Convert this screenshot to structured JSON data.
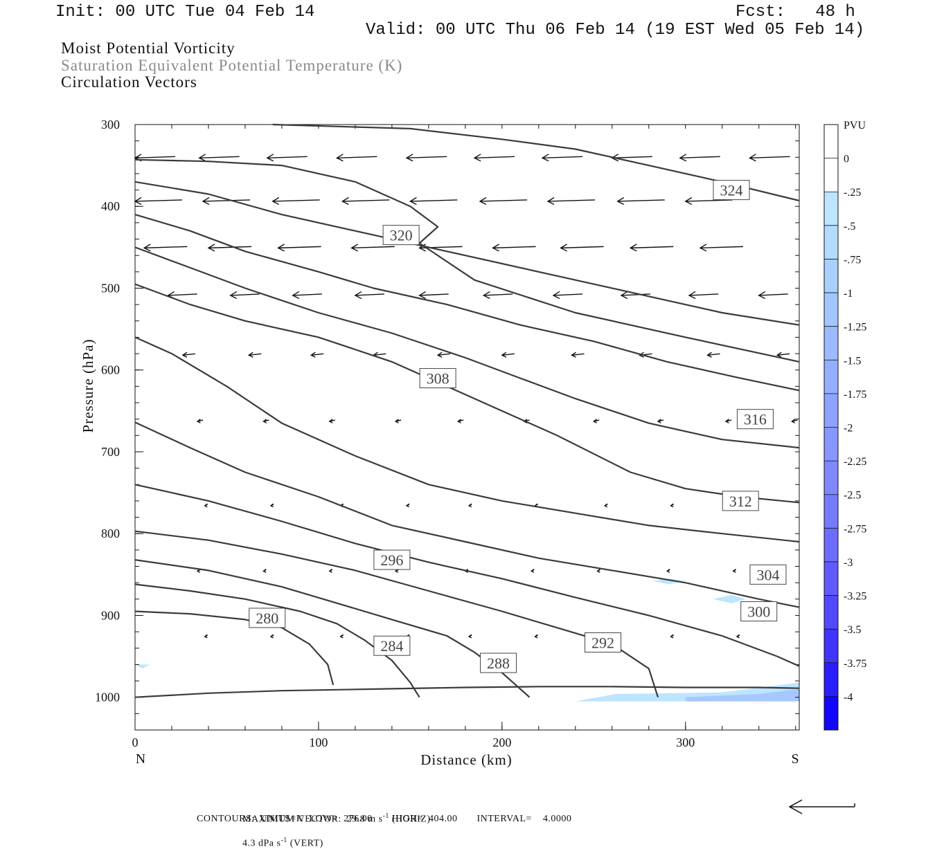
{
  "header": {
    "init": "Init: 00 UTC Tue 04 Feb 14",
    "fcst": "Fcst:   48 h",
    "valid": "Valid: 00 UTC Thu 06 Feb 14 (19 EST Wed 05 Feb 14)",
    "lines": [
      {
        "text": "Moist Potential Vorticity",
        "color": "#111111"
      },
      {
        "text": "Saturation Equivalent Potential Temperature (K)",
        "color": "#8a8a8a"
      },
      {
        "text": "Circulation Vectors",
        "color": "#111111"
      }
    ]
  },
  "chart_data": {
    "type": "cross-section",
    "xlabel": "Distance (km)",
    "ylabel": "Pressure (hPa)",
    "xlim": [
      0,
      362
    ],
    "ylim": [
      300,
      1040
    ],
    "x_ticks": [
      0,
      100,
      200,
      300
    ],
    "y_ticks": [
      300,
      400,
      500,
      600,
      700,
      800,
      900,
      1000
    ],
    "x_end_labels": {
      "left": "N",
      "right": "S"
    },
    "colorbar": {
      "title": "PVU",
      "labels": [
        "0",
        "-.25",
        "-.5",
        "-.75",
        "-1",
        "-1.25",
        "-1.5",
        "-1.75",
        "-2",
        "-2.25",
        "-2.5",
        "-2.75",
        "-3",
        "-3.25",
        "-3.5",
        "-3.75",
        "-4"
      ],
      "colors": [
        "#ffffff",
        "#ffffff",
        "#bde5ff",
        "#b2dcff",
        "#a8d0ff",
        "#a2c6ff",
        "#9cbaff",
        "#95aeff",
        "#8ea2ff",
        "#8896ff",
        "#7f88ff",
        "#767aff",
        "#6c6cff",
        "#5f5bff",
        "#5049ff",
        "#3f35ff",
        "#2a1eff",
        "#1306ff"
      ]
    },
    "contours": [
      {
        "label": "",
        "points": [
          [
            0,
            1000
          ],
          [
            40,
            995
          ],
          [
            80,
            992
          ],
          [
            130,
            990
          ],
          [
            180,
            988
          ],
          [
            220,
            987
          ],
          [
            260,
            987
          ],
          [
            300,
            988
          ],
          [
            340,
            988
          ],
          [
            362,
            989
          ]
        ]
      },
      {
        "label": "280",
        "label_pos": [
          72,
          903
        ],
        "points": [
          [
            0,
            895
          ],
          [
            30,
            898
          ],
          [
            60,
            905
          ],
          [
            80,
            915
          ],
          [
            95,
            935
          ],
          [
            105,
            960
          ],
          [
            108,
            985
          ]
        ]
      },
      {
        "label": "",
        "points": [
          [
            0,
            862
          ],
          [
            30,
            870
          ],
          [
            60,
            880
          ],
          [
            90,
            895
          ],
          [
            110,
            910
          ],
          [
            125,
            930
          ],
          [
            140,
            955
          ],
          [
            150,
            982
          ],
          [
            155,
            1000
          ]
        ]
      },
      {
        "label": "284",
        "label_pos": [
          140,
          937
        ],
        "points": [
          [
            0,
            832
          ],
          [
            40,
            845
          ],
          [
            80,
            865
          ],
          [
            110,
            885
          ],
          [
            140,
            905
          ],
          [
            170,
            925
          ],
          [
            185,
            945
          ],
          [
            200,
            970
          ],
          [
            215,
            1000
          ]
        ]
      },
      {
        "label": "288",
        "label_pos": [
          198,
          958
        ],
        "points": [
          [
            0,
            797
          ],
          [
            40,
            808
          ],
          [
            80,
            825
          ],
          [
            120,
            845
          ],
          [
            160,
            870
          ],
          [
            200,
            895
          ],
          [
            230,
            915
          ],
          [
            260,
            935
          ],
          [
            280,
            965
          ],
          [
            285,
            1000
          ]
        ]
      },
      {
        "label": "292",
        "label_pos": [
          255,
          933
        ],
        "points": [
          [
            0,
            740
          ],
          [
            40,
            760
          ],
          [
            80,
            785
          ],
          [
            120,
            812
          ],
          [
            160,
            835
          ],
          [
            200,
            855
          ],
          [
            240,
            878
          ],
          [
            280,
            900
          ],
          [
            320,
            925
          ],
          [
            350,
            950
          ],
          [
            362,
            962
          ]
        ]
      },
      {
        "label": "296",
        "label_pos": [
          140,
          832
        ],
        "points": [
          [
            0,
            664
          ],
          [
            30,
            695
          ],
          [
            60,
            725
          ],
          [
            100,
            755
          ],
          [
            140,
            790
          ],
          [
            180,
            810
          ],
          [
            220,
            830
          ],
          [
            260,
            845
          ],
          [
            300,
            860
          ],
          [
            340,
            880
          ],
          [
            362,
            890
          ]
        ]
      },
      {
        "label": "300",
        "label_pos": [
          340,
          895
        ],
        "points": [
          [
            0,
            560
          ],
          [
            20,
            580
          ],
          [
            50,
            620
          ],
          [
            80,
            665
          ],
          [
            120,
            705
          ],
          [
            160,
            740
          ],
          [
            200,
            760
          ],
          [
            240,
            775
          ],
          [
            280,
            790
          ],
          [
            320,
            800
          ],
          [
            362,
            810
          ]
        ]
      },
      {
        "label": "304",
        "label_pos": [
          345,
          850
        ],
        "points": [
          [
            0,
            495
          ],
          [
            30,
            520
          ],
          [
            60,
            540
          ],
          [
            100,
            560
          ],
          [
            140,
            590
          ],
          [
            170,
            620
          ],
          [
            200,
            650
          ],
          [
            230,
            680
          ],
          [
            270,
            725
          ],
          [
            300,
            745
          ],
          [
            330,
            755
          ],
          [
            362,
            762
          ]
        ]
      },
      {
        "label": "308",
        "label_pos": [
          165,
          610
        ],
        "points": [
          [
            0,
            450
          ],
          [
            30,
            475
          ],
          [
            60,
            500
          ],
          [
            100,
            530
          ],
          [
            140,
            555
          ],
          [
            180,
            585
          ],
          [
            210,
            610
          ],
          [
            240,
            635
          ],
          [
            280,
            665
          ],
          [
            320,
            685
          ],
          [
            362,
            695
          ]
        ]
      },
      {
        "label": "312",
        "label_pos": [
          330,
          760
        ],
        "points": [
          [
            0,
            410
          ],
          [
            30,
            430
          ],
          [
            60,
            455
          ],
          [
            100,
            480
          ],
          [
            130,
            500
          ],
          [
            170,
            520
          ],
          [
            210,
            545
          ],
          [
            250,
            565
          ],
          [
            290,
            590
          ],
          [
            330,
            610
          ],
          [
            362,
            625
          ]
        ]
      },
      {
        "label": "316",
        "label_pos": [
          338,
          660
        ],
        "points": [
          [
            0,
            370
          ],
          [
            40,
            385
          ],
          [
            80,
            410
          ],
          [
            120,
            430
          ],
          [
            160,
            450
          ],
          [
            200,
            470
          ],
          [
            240,
            490
          ],
          [
            280,
            510
          ],
          [
            320,
            530
          ],
          [
            362,
            545
          ]
        ]
      },
      {
        "label": "320",
        "label_pos": [
          145,
          435
        ],
        "points": [
          [
            0,
            343
          ],
          [
            40,
            345
          ],
          [
            80,
            350
          ],
          [
            120,
            370
          ],
          [
            150,
            400
          ],
          [
            165,
            425
          ],
          [
            155,
            445
          ],
          [
            185,
            490
          ],
          [
            240,
            530
          ],
          [
            300,
            560
          ],
          [
            362,
            590
          ]
        ]
      },
      {
        "label": "324",
        "label_pos": [
          325,
          380
        ],
        "points": [
          [
            75,
            300
          ],
          [
            150,
            305
          ],
          [
            200,
            318
          ],
          [
            240,
            330
          ],
          [
            280,
            350
          ],
          [
            320,
            370
          ],
          [
            362,
            393
          ]
        ]
      }
    ],
    "circulation_vectors_note": "leftward (north-directed) wind arrows, longer aloft, near zero below 750 hPa",
    "max_vector_line": "MAXIMUM VECTOR:  29.8 m s",
    "max_vector_parts": [
      "MAXIMUM VECTOR:  29.8 m s",
      "-1",
      " (HORIZ)",
      "4.3 dPa s",
      "-1",
      " (VERT)"
    ],
    "contours_line": "CONTOURS:  UNITS=K  LOW=  276.00       HIGH=  404.00       INTERVAL=    4.0000"
  }
}
